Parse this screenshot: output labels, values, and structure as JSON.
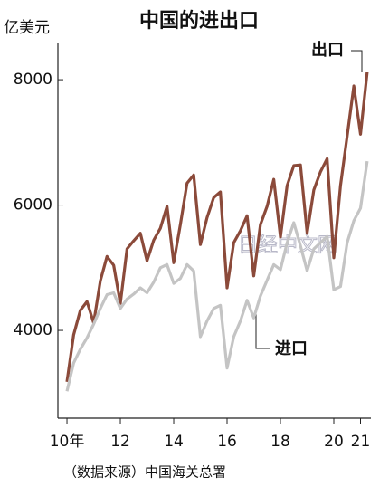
{
  "chart_data": {
    "type": "line",
    "title": "中国的进出口",
    "y_label": "亿美元",
    "source": "（数据来源）中国海关总署",
    "watermark": "日经中文网",
    "x": [
      2010,
      2010.25,
      2010.5,
      2010.75,
      2011,
      2011.25,
      2011.5,
      2011.75,
      2012,
      2012.25,
      2012.5,
      2012.75,
      2013,
      2013.25,
      2013.5,
      2013.75,
      2014,
      2014.25,
      2014.5,
      2014.75,
      2015,
      2015.25,
      2015.5,
      2015.75,
      2016,
      2016.25,
      2016.5,
      2016.75,
      2017,
      2017.25,
      2017.5,
      2017.75,
      2018,
      2018.25,
      2018.5,
      2018.75,
      2019,
      2019.25,
      2019.5,
      2019.75,
      2020,
      2020.25,
      2020.5,
      2020.75,
      2021,
      2021.25
    ],
    "series": [
      {
        "name": "出口",
        "color": "#8b4a3a",
        "values": [
          3180,
          3930,
          4320,
          4460,
          4120,
          4790,
          5180,
          5040,
          4430,
          5300,
          5430,
          5550,
          5110,
          5440,
          5630,
          5980,
          5080,
          5690,
          6350,
          6480,
          5370,
          5800,
          6120,
          6210,
          4680,
          5400,
          5590,
          5830,
          4870,
          5690,
          5980,
          6410,
          5490,
          6310,
          6630,
          6640,
          5550,
          6240,
          6530,
          6740,
          5160,
          6310,
          7100,
          7900,
          7130,
          8120
        ]
      },
      {
        "name": "进口",
        "color": "#c4c4c4",
        "values": [
          3030,
          3480,
          3700,
          3880,
          4100,
          4350,
          4570,
          4600,
          4350,
          4500,
          4580,
          4680,
          4600,
          4770,
          5000,
          5050,
          4750,
          4830,
          5050,
          4950,
          3900,
          4150,
          4350,
          4400,
          3400,
          3900,
          4150,
          4480,
          4200,
          4550,
          4800,
          5050,
          4970,
          5400,
          5720,
          5350,
          4950,
          5300,
          5400,
          5500,
          4650,
          4700,
          5400,
          5750,
          5950,
          6700
        ]
      }
    ],
    "xlim": [
      2009.66,
      2021.39
    ],
    "xticks": [
      {
        "value": 2010,
        "label": "10年"
      },
      {
        "value": 2012,
        "label": "12"
      },
      {
        "value": 2014,
        "label": "14"
      },
      {
        "value": 2016,
        "label": "16"
      },
      {
        "value": 2018,
        "label": "18"
      },
      {
        "value": 2020,
        "label": "20"
      },
      {
        "value": 2021,
        "label": "21"
      }
    ],
    "ylim": [
      2600,
      8550
    ],
    "yticks": [
      4000,
      6000,
      8000
    ]
  }
}
